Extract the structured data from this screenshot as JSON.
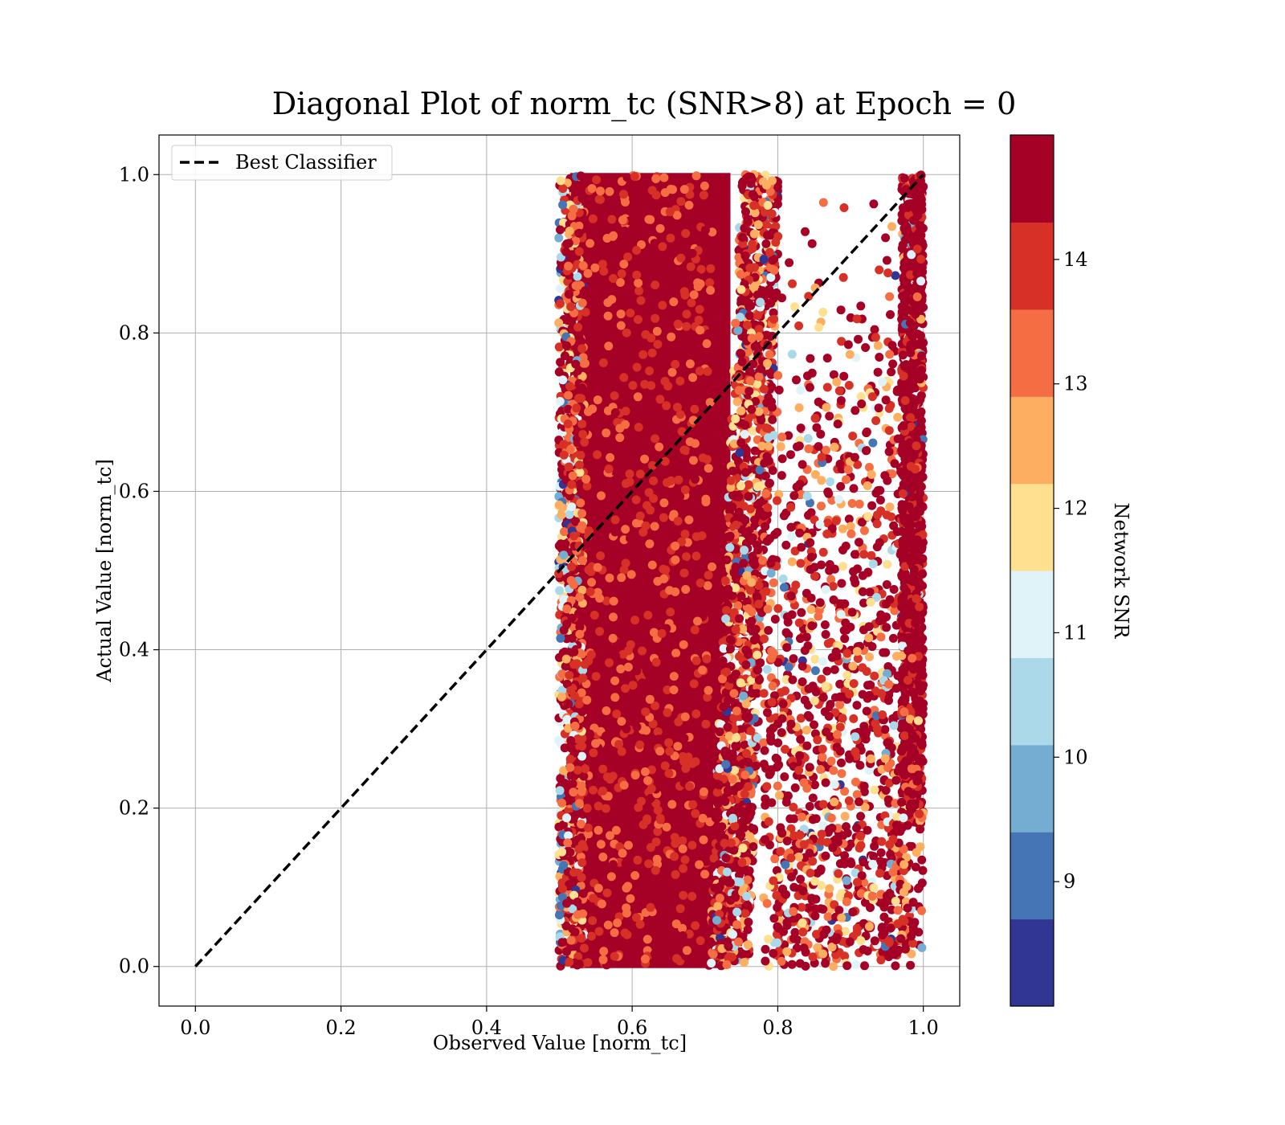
{
  "chart_data": {
    "type": "scatter",
    "title": "Diagonal Plot of norm_tc (SNR>8) at Epoch = 0",
    "xlabel": "Observed Value [norm_tc]",
    "ylabel": "Actual Value [norm_tc]",
    "xlim": [
      -0.05,
      1.05
    ],
    "ylim": [
      -0.05,
      1.05
    ],
    "xticks": [
      0.0,
      0.2,
      0.4,
      0.6,
      0.8,
      1.0
    ],
    "xtick_labels": [
      "0.0",
      "0.2",
      "0.4",
      "0.6",
      "0.8",
      "1.0"
    ],
    "yticks": [
      0.0,
      0.2,
      0.4,
      0.6,
      0.8,
      1.0
    ],
    "ytick_labels": [
      "0.0",
      "0.2",
      "0.4",
      "0.6",
      "0.8",
      "1.0"
    ],
    "grid": true,
    "legend": {
      "location": "upper-left",
      "entries": [
        {
          "label": "Best Classifier",
          "style": "dashed",
          "color": "#000000"
        }
      ]
    },
    "reference_line": {
      "name": "Best Classifier",
      "x": [
        0.0,
        1.0
      ],
      "y": [
        0.0,
        1.0
      ],
      "style": "dashed",
      "color": "#000000"
    },
    "colorbar": {
      "label": "Network SNR",
      "range": [
        8.0,
        15.0
      ],
      "ticks": [
        9,
        10,
        11,
        12,
        13,
        14
      ],
      "tick_labels": [
        "9",
        "10",
        "11",
        "12",
        "13",
        "14"
      ],
      "colors": [
        "#313695",
        "#4575b4",
        "#74add1",
        "#abd9e9",
        "#e0f3f8",
        "#fee090",
        "#fdae61",
        "#f46d43",
        "#d73027",
        "#a50026"
      ]
    },
    "scatter_summary": {
      "dense_band_x": [
        0.5,
        0.78
      ],
      "dense_band_y": [
        0.0,
        1.0
      ],
      "sparse_region_x": [
        0.78,
        1.0
      ],
      "edge_column_x": [
        0.97,
        1.0
      ]
    }
  }
}
